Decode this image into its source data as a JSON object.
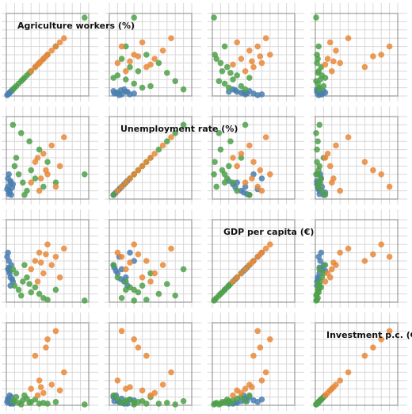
{
  "chart_data": {
    "type": "scatter_matrix",
    "dimensions": [
      {
        "label": "Agriculture workers (%)",
        "lim": [
          0,
          100
        ],
        "ticks": [
          0,
          10,
          20,
          30,
          40,
          50,
          60,
          70,
          80,
          90,
          100
        ]
      },
      {
        "label": "Unemployment rate (%)",
        "lim": [
          0,
          100
        ],
        "ticks": [
          0,
          10,
          20,
          30,
          40,
          50,
          60,
          70,
          80,
          90,
          100
        ]
      },
      {
        "label": "GDP per capita (€)",
        "lim": [
          0,
          100
        ],
        "ticks": [
          0,
          10,
          20,
          30,
          40,
          50,
          60,
          70,
          80,
          90,
          100
        ]
      },
      {
        "label": "Investment p.c. (€)",
        "lim": [
          0,
          100
        ],
        "ticks": [
          0,
          10,
          20,
          30,
          40,
          50,
          60,
          70,
          80,
          90,
          100
        ]
      }
    ],
    "grid": true,
    "series": [
      {
        "color": "#4a7fb0",
        "values": [
          [
            2,
            15,
            40,
            8
          ],
          [
            4,
            10,
            35,
            5
          ],
          [
            5,
            20,
            30,
            3
          ],
          [
            3,
            30,
            50,
            6
          ],
          [
            6,
            5,
            45,
            10
          ],
          [
            1,
            12,
            55,
            4
          ],
          [
            8,
            18,
            25,
            2
          ],
          [
            2,
            25,
            60,
            7
          ],
          [
            4,
            8,
            38,
            12
          ],
          [
            7,
            14,
            28,
            3
          ],
          [
            3,
            6,
            42,
            5
          ],
          [
            5,
            22,
            20,
            2
          ]
        ]
      },
      {
        "color": "#4fa04a",
        "values": [
          [
            10,
            40,
            20,
            5
          ],
          [
            15,
            30,
            15,
            3
          ],
          [
            25,
            10,
            30,
            8
          ],
          [
            40,
            60,
            10,
            2
          ],
          [
            20,
            20,
            25,
            6
          ],
          [
            30,
            35,
            12,
            4
          ],
          [
            45,
            15,
            5,
            3
          ],
          [
            12,
            50,
            35,
            10
          ],
          [
            18,
            80,
            8,
            1
          ],
          [
            35,
            25,
            18,
            7
          ],
          [
            8,
            90,
            40,
            5
          ],
          [
            50,
            45,
            3,
            2
          ],
          [
            22,
            5,
            45,
            12
          ],
          [
            60,
            20,
            15,
            4
          ],
          [
            28,
            70,
            22,
            3
          ],
          [
            95,
            30,
            2,
            1
          ]
        ]
      },
      {
        "color": "#e8883a",
        "values": [
          [
            30,
            20,
            40,
            20
          ],
          [
            35,
            45,
            50,
            60
          ],
          [
            40,
            10,
            60,
            30
          ],
          [
            45,
            55,
            35,
            15
          ],
          [
            50,
            30,
            70,
            80
          ],
          [
            55,
            65,
            45,
            25
          ],
          [
            60,
            15,
            55,
            90
          ],
          [
            65,
            40,
            30,
            18
          ],
          [
            70,
            75,
            65,
            40
          ],
          [
            38,
            50,
            25,
            12
          ],
          [
            48,
            35,
            58,
            70
          ],
          [
            42,
            25,
            48,
            22
          ]
        ]
      }
    ]
  }
}
